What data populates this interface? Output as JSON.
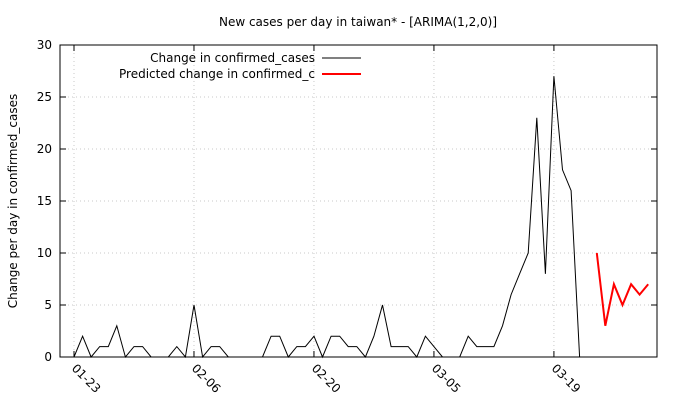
{
  "chart_data": {
    "type": "line",
    "title": "New cases per day in taiwan* -  [ARIMA(1,2,0)]",
    "xlabel": "",
    "ylabel": "Change per day in confirmed_cases",
    "ylim": [
      0,
      30
    ],
    "yticks": [
      0,
      5,
      10,
      15,
      20,
      25,
      30
    ],
    "grid": true,
    "legend_position": "top-left",
    "xtick_labels": [
      "01-23",
      "02-06",
      "02-20",
      "03-05",
      "03-19"
    ],
    "xtick_days": [
      1,
      15,
      29,
      43,
      57
    ],
    "xlim_days": [
      0,
      70
    ],
    "series": [
      {
        "name": "Change in confirmed_cases",
        "color": "#000000",
        "x_days": [
          1,
          2,
          3,
          4,
          5,
          6,
          7,
          8,
          9,
          10,
          11,
          12,
          13,
          14,
          15,
          16,
          17,
          18,
          19,
          20,
          21,
          22,
          23,
          24,
          25,
          26,
          27,
          28,
          29,
          30,
          31,
          32,
          33,
          34,
          35,
          36,
          37,
          38,
          39,
          40,
          41,
          42,
          43,
          44,
          45,
          46,
          47,
          48,
          49,
          50,
          51,
          52,
          53,
          54,
          55,
          56,
          57,
          58,
          59,
          60,
          61,
          62
        ],
        "values": [
          0,
          2,
          0,
          1,
          1,
          3,
          0,
          1,
          1,
          0,
          0,
          0,
          1,
          0,
          5,
          0,
          1,
          1,
          0,
          0,
          0,
          0,
          0,
          2,
          2,
          0,
          1,
          1,
          2,
          0,
          2,
          2,
          1,
          1,
          0,
          2,
          5,
          1,
          1,
          1,
          0,
          2,
          1,
          0,
          0,
          0,
          2,
          1,
          1,
          1,
          3,
          6,
          8,
          10,
          23,
          8,
          27,
          18,
          16,
          0,
          0,
          0
        ]
      },
      {
        "name": "Predicted change in confirmed_c",
        "color": "#ff0000",
        "x_days": [
          62,
          63,
          64,
          65,
          66,
          67,
          68
        ],
        "values": [
          10,
          3,
          7,
          5,
          7,
          6,
          7
        ]
      }
    ]
  }
}
